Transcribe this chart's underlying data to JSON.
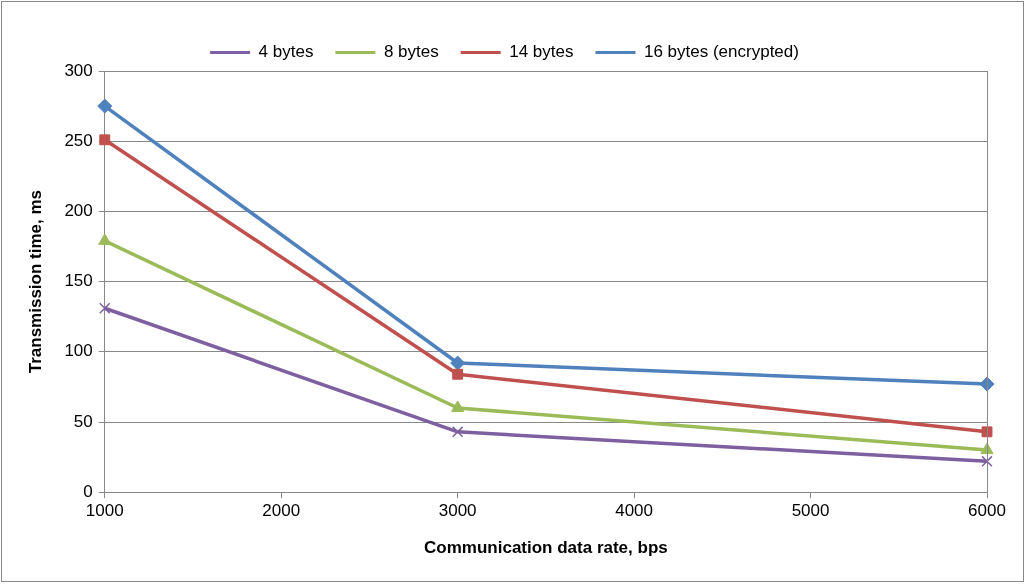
{
  "chart_data": {
    "type": "line",
    "xlabel": "Communication data rate, bps",
    "ylabel": "Transmission time, ms",
    "x": [
      1000,
      3000,
      6000
    ],
    "xlim": [
      1000,
      6000
    ],
    "xticks": [
      1000,
      2000,
      3000,
      4000,
      5000,
      6000
    ],
    "ylim": [
      0,
      300
    ],
    "yticks": [
      0,
      50,
      100,
      150,
      200,
      250,
      300
    ],
    "grid": "y",
    "legend": "top",
    "series": [
      {
        "name": "4 bytes",
        "color": "#7e5fa0",
        "marker": "cross",
        "values": [
          131,
          43,
          22
        ]
      },
      {
        "name": "8 bytes",
        "color": "#9bbb59",
        "marker": "triangle",
        "values": [
          179,
          60,
          30
        ]
      },
      {
        "name": "14 bytes",
        "color": "#c0504d",
        "marker": "square",
        "values": [
          251,
          84,
          43
        ]
      },
      {
        "name": "16 bytes (encrypted)",
        "color": "#4f81bd",
        "marker": "diamond",
        "values": [
          275,
          92,
          77
        ]
      }
    ]
  }
}
